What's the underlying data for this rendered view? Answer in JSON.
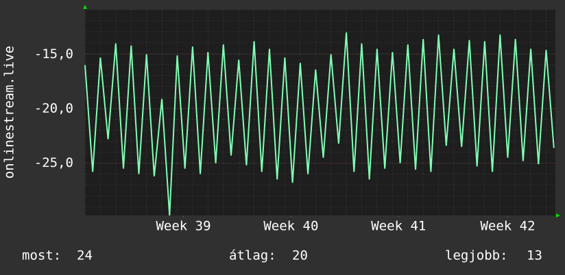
{
  "chart_data": {
    "type": "line",
    "ylabel": "onlinestream.live",
    "x": [
      0,
      0.5,
      1,
      1.5,
      2,
      2.5,
      3,
      3.5,
      4,
      4.5,
      5,
      5.5,
      6,
      6.5,
      7,
      7.5,
      8,
      8.5,
      9,
      9.5,
      10,
      10.5,
      11,
      11.5,
      12,
      12.5,
      13,
      13.5,
      14,
      14.5,
      15,
      15.5,
      16,
      16.5,
      17,
      17.5,
      18,
      18.5,
      19,
      19.5,
      20,
      20.5,
      21,
      21.5,
      22,
      22.5,
      23,
      23.5,
      24,
      24.5,
      25,
      25.5,
      26,
      26.5,
      27,
      27.5,
      28,
      28.5,
      29,
      29.5,
      30,
      30.5
    ],
    "series": [
      {
        "color": "#80ffb4",
        "values": [
          -16,
          -25.8,
          -15.3,
          -22.8,
          -14,
          -25.5,
          -14.2,
          -26,
          -15,
          -26.2,
          -19.1,
          -29.8,
          -15.1,
          -25.5,
          -14.3,
          -26,
          -14.8,
          -25,
          -14.1,
          -24.3,
          -15.5,
          -25.2,
          -13.8,
          -25.8,
          -14.5,
          -26.5,
          -15.3,
          -26.8,
          -15.8,
          -26,
          -16.4,
          -24.5,
          -15,
          -23.2,
          -13,
          -25.8,
          -14,
          -26.5,
          -14.5,
          -25.5,
          -14.8,
          -25,
          -14.1,
          -25.6,
          -13.6,
          -25.8,
          -13.2,
          -23.4,
          -14.5,
          -23.5,
          -13.7,
          -25.3,
          -13.8,
          -25.8,
          -13.2,
          -24.5,
          -13.6,
          -24.8,
          -14.5,
          -25.1,
          -14.6,
          -23.6
        ]
      }
    ],
    "xlim": [
      0,
      30.6
    ],
    "xticks": [
      {
        "value": 6.4,
        "label": "Week 39"
      },
      {
        "value": 13.4,
        "label": "Week 40"
      },
      {
        "value": 20.4,
        "label": "Week 41"
      },
      {
        "value": 27.5,
        "label": "Week 42"
      }
    ],
    "ylim": [
      -29.8,
      -10.9
    ],
    "yticks": [
      {
        "value": -15,
        "label": "-15,0"
      },
      {
        "value": -20,
        "label": "-20,0"
      },
      {
        "value": -25,
        "label": "-25,0"
      }
    ],
    "grid": true,
    "stats": [
      {
        "label": "most:",
        "value": 24
      },
      {
        "label": "átlag:",
        "value": 20
      },
      {
        "label": "legjobb:",
        "value": 13
      }
    ]
  }
}
